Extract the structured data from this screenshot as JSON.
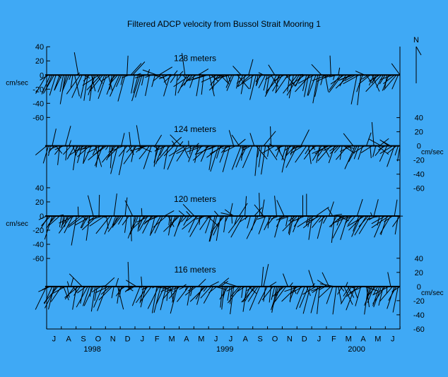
{
  "chart_data": {
    "type": "stick",
    "title": "Filtered ADCP velocity from Bussol Strait Mooring 1",
    "north_label": "N",
    "unit_label": "cm/sec",
    "y_ticks": [
      "40",
      "20",
      "0",
      "-20",
      "-40",
      "-60"
    ],
    "months": [
      "J",
      "A",
      "S",
      "O",
      "N",
      "D",
      "J",
      "F",
      "M",
      "A",
      "M",
      "J",
      "J",
      "A",
      "S",
      "O",
      "N",
      "D",
      "J",
      "F",
      "M",
      "A",
      "M",
      "J"
    ],
    "years": [
      "1998",
      "1999",
      "2000"
    ],
    "x_range": [
      "1998-07",
      "2000-06"
    ],
    "ylim": [
      -60,
      40
    ],
    "panels": [
      {
        "label": "128 meters",
        "axis_side": "left"
      },
      {
        "label": "124 meters",
        "axis_side": "right"
      },
      {
        "label": "120 meters",
        "axis_side": "left"
      },
      {
        "label": "116 meters",
        "axis_side": "right"
      }
    ]
  }
}
